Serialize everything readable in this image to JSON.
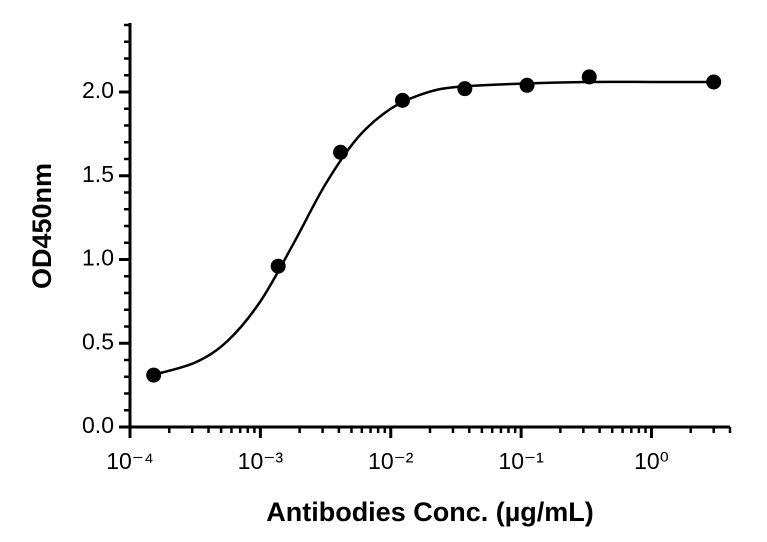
{
  "chart_data": {
    "type": "scatter",
    "xlabel": "Antibodies Conc. (µg/mL)",
    "ylabel": "OD450nm",
    "xscale": "log",
    "xlim": [
      0.0001,
      4
    ],
    "ylim": [
      0,
      2.4
    ],
    "xticks": [
      {
        "value": 0.0001,
        "label": "10⁻⁴"
      },
      {
        "value": 0.001,
        "label": "10⁻³"
      },
      {
        "value": 0.01,
        "label": "10⁻²"
      },
      {
        "value": 0.1,
        "label": "10⁻¹"
      },
      {
        "value": 1,
        "label": "10⁰"
      }
    ],
    "yticks": [
      {
        "value": 0,
        "label": "0.0"
      },
      {
        "value": 0.5,
        "label": "0.5"
      },
      {
        "value": 1,
        "label": "1.0"
      },
      {
        "value": 1.5,
        "label": "1.5"
      },
      {
        "value": 2,
        "label": "2.0"
      }
    ],
    "xminorticks": [
      0.0002,
      0.0003,
      0.0004,
      0.0005,
      0.0006,
      0.0007,
      0.0008,
      0.0009,
      0.002,
      0.003,
      0.004,
      0.005,
      0.006,
      0.007,
      0.008,
      0.009,
      0.02,
      0.03,
      0.04,
      0.05,
      0.06,
      0.07,
      0.08,
      0.09,
      0.2,
      0.3,
      0.4,
      0.5,
      0.6,
      0.7,
      0.8,
      0.9,
      2,
      3,
      4
    ],
    "yminorticks": [
      0.1,
      0.2,
      0.3,
      0.4,
      0.6,
      0.7,
      0.8,
      0.9,
      1.1,
      1.2,
      1.3,
      1.4,
      1.6,
      1.7,
      1.8,
      1.9,
      2.1,
      2.2,
      2.3,
      2.4
    ],
    "color": "#000000",
    "points": {
      "x": [
        0.000152,
        0.00137,
        0.00412,
        0.0123,
        0.037,
        0.111,
        0.333,
        3
      ],
      "values": [
        0.31,
        0.96,
        1.64,
        1.95,
        2.02,
        2.04,
        2.09,
        2.06
      ]
    },
    "fit": {
      "x": [
        0.000148,
        0.000316,
        0.000562,
        0.001,
        0.00178,
        0.00316,
        0.00562,
        0.01,
        0.0178,
        0.0316,
        0.1,
        0.316,
        1,
        3
      ],
      "values": [
        0.31,
        0.385,
        0.515,
        0.75,
        1.09,
        1.45,
        1.73,
        1.9,
        1.99,
        2.03,
        2.05,
        2.06,
        2.06,
        2.06
      ]
    }
  }
}
